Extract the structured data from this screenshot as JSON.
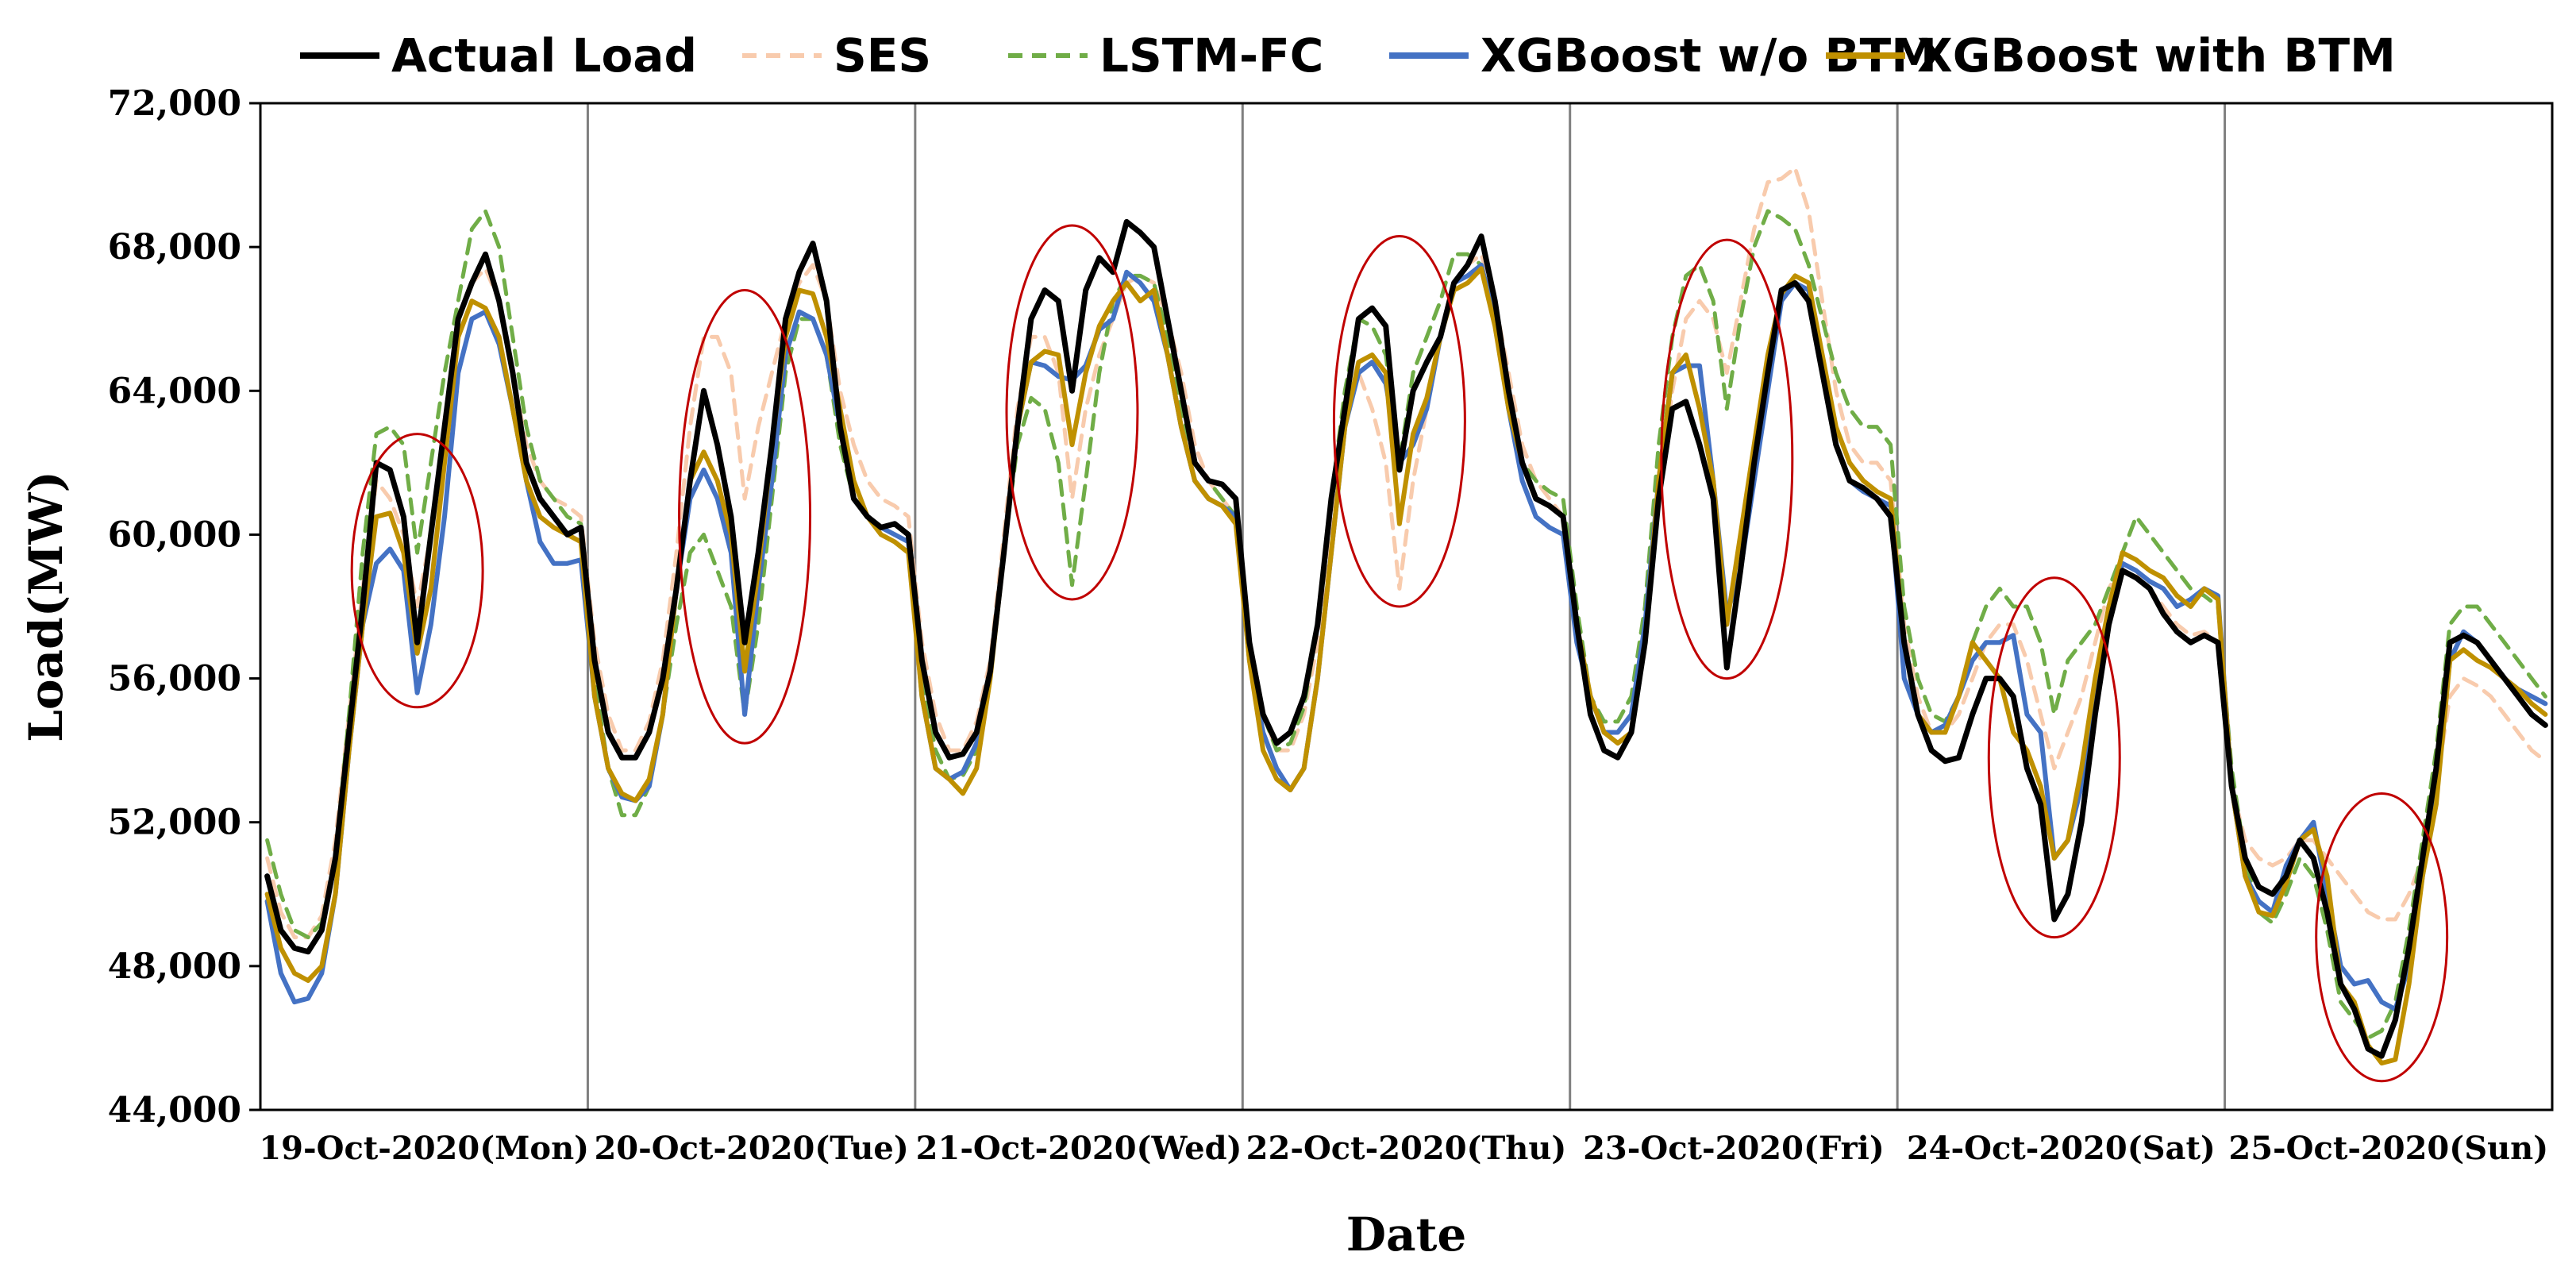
{
  "chart_data": {
    "type": "line",
    "title": "",
    "xlabel": "Date",
    "ylabel": "Load(MW)",
    "ylim": [
      44000,
      72000
    ],
    "yticks": [
      44000,
      48000,
      52000,
      56000,
      60000,
      64000,
      68000,
      72000
    ],
    "ytick_labels": [
      "44,000",
      "48,000",
      "52,000",
      "56,000",
      "60,000",
      "64,000",
      "68,000",
      "72,000"
    ],
    "day_labels": [
      "19-Oct-2020(Mon)",
      "20-Oct-2020(Tue)",
      "21-Oct-2020(Wed)",
      "22-Oct-2020(Thu)",
      "23-Oct-2020(Fri)",
      "24-Oct-2020(Sat)",
      "25-Oct-2020(Sun)"
    ],
    "hours_per_day": 24,
    "legend_position": "top",
    "series": [
      {
        "name": "Actual Load",
        "color": "#000000",
        "style": "solid",
        "values": [
          50500,
          49000,
          48500,
          48400,
          49000,
          51000,
          54500,
          58000,
          62000,
          61800,
          60500,
          57000,
          60000,
          63000,
          66000,
          67000,
          67800,
          66500,
          64500,
          62000,
          61000,
          60500,
          60000,
          60200,
          56500,
          54500,
          53800,
          53800,
          54500,
          56000,
          58500,
          61500,
          64000,
          62500,
          60500,
          57000,
          59500,
          62500,
          66000,
          67300,
          68100,
          66500,
          63000,
          61000,
          60500,
          60200,
          60300,
          60000,
          56500,
          54500,
          53800,
          53900,
          54500,
          56200,
          59500,
          63000,
          66000,
          66800,
          66500,
          64000,
          66800,
          67700,
          67300,
          68700,
          68400,
          68000,
          66000,
          64000,
          62000,
          61500,
          61400,
          61000,
          57000,
          55000,
          54200,
          54500,
          55500,
          57500,
          61000,
          63500,
          66000,
          66300,
          65800,
          61800,
          64000,
          64800,
          65500,
          67000,
          67500,
          68300,
          66500,
          64000,
          62000,
          61000,
          60800,
          60500,
          57500,
          55000,
          54000,
          53800,
          54500,
          57000,
          61000,
          63500,
          63700,
          62500,
          61000,
          56300,
          59000,
          62000,
          64500,
          66800,
          67000,
          66500,
          64500,
          62500,
          61500,
          61300,
          61000,
          60500,
          57000,
          55000,
          54000,
          53700,
          53800,
          55000,
          56000,
          56000,
          55500,
          53500,
          52500,
          49300,
          50000,
          52000,
          55000,
          57500,
          59000,
          58800,
          58500,
          57800,
          57300,
          57000,
          57200,
          57000,
          53000,
          51000,
          50200,
          50000,
          50500,
          51500,
          51000,
          49500,
          47500,
          46800,
          45700,
          45500,
          46500,
          48500,
          51000,
          53500,
          57000,
          57200,
          57000,
          56500,
          56000,
          55500,
          55000,
          54700
        ]
      },
      {
        "name": "SES",
        "color": "#f8cbad",
        "style": "dash",
        "values": [
          51000,
          49500,
          48800,
          48800,
          49400,
          51500,
          55000,
          58500,
          61500,
          61000,
          60000,
          58000,
          60000,
          63000,
          66000,
          67000,
          67400,
          66500,
          64500,
          62500,
          61500,
          61000,
          60800,
          60500,
          57000,
          55000,
          54000,
          54000,
          54800,
          56500,
          59500,
          63000,
          65500,
          65500,
          64500,
          61000,
          63000,
          64500,
          66000,
          67000,
          67500,
          66500,
          64000,
          62500,
          61500,
          61000,
          60800,
          60500,
          57000,
          55000,
          54000,
          54000,
          54800,
          56500,
          60000,
          63500,
          65500,
          65500,
          64500,
          61000,
          63500,
          65000,
          66000,
          67000,
          67200,
          67000,
          66000,
          64500,
          62500,
          61500,
          61000,
          60500,
          57000,
          55000,
          54000,
          54000,
          55000,
          57000,
          60500,
          63500,
          64500,
          63500,
          62000,
          58500,
          61500,
          63500,
          65500,
          67000,
          67500,
          67800,
          66500,
          64500,
          62500,
          61500,
          61000,
          60500,
          57500,
          55500,
          54500,
          54500,
          55000,
          57000,
          61000,
          64000,
          66000,
          66500,
          66000,
          64500,
          66500,
          68500,
          69800,
          69900,
          70200,
          69000,
          66500,
          64000,
          62500,
          62000,
          62000,
          61500,
          57500,
          55500,
          54500,
          54500,
          55000,
          56000,
          57000,
          57500,
          57500,
          56500,
          55000,
          53500,
          54500,
          55500,
          57000,
          58500,
          59200,
          59000,
          58500,
          58000,
          57500,
          57200,
          57300,
          57000,
          53000,
          51500,
          51000,
          50800,
          51000,
          51500,
          51500,
          51000,
          50500,
          50000,
          49500,
          49300,
          49300,
          50000,
          51000,
          53000,
          55500,
          56000,
          55800,
          55500,
          55000,
          54500,
          54000,
          53700
        ]
      },
      {
        "name": "LSTM-FC",
        "color": "#70ad47",
        "style": "dash",
        "values": [
          51500,
          50000,
          49000,
          48800,
          49200,
          51000,
          55000,
          59500,
          62800,
          63000,
          62500,
          59500,
          62000,
          64500,
          66500,
          68500,
          69000,
          68000,
          65500,
          63000,
          61500,
          61000,
          60500,
          60300,
          56000,
          53500,
          52200,
          52200,
          53000,
          55000,
          57500,
          59500,
          60000,
          59000,
          58000,
          55000,
          57500,
          61000,
          64500,
          66000,
          66000,
          65000,
          62500,
          61000,
          60500,
          60200,
          60000,
          59800,
          56000,
          54000,
          53200,
          53300,
          54000,
          56000,
          59500,
          62500,
          63800,
          63500,
          62000,
          58600,
          61500,
          64500,
          66500,
          67200,
          67200,
          67000,
          65500,
          63500,
          62000,
          61500,
          61000,
          60500,
          57000,
          55000,
          54000,
          54200,
          55200,
          57500,
          61000,
          64000,
          66000,
          65800,
          65000,
          62000,
          64500,
          65500,
          66500,
          67800,
          67800,
          67500,
          66000,
          64000,
          62000,
          61500,
          61200,
          61000,
          58000,
          55500,
          54800,
          54800,
          55500,
          58000,
          62500,
          65500,
          67200,
          67500,
          66500,
          63500,
          66000,
          68000,
          69000,
          68800,
          68500,
          67500,
          66000,
          64500,
          63500,
          63000,
          63000,
          62500,
          58000,
          56000,
          55000,
          54800,
          55500,
          57000,
          58000,
          58500,
          58000,
          58000,
          57000,
          55000,
          56500,
          57000,
          57500,
          58500,
          59500,
          60500,
          60000,
          59500,
          59000,
          58500,
          58300,
          58000,
          53500,
          51000,
          49500,
          49200,
          50000,
          51000,
          50500,
          49000,
          47000,
          46500,
          46000,
          46200,
          47000,
          49000,
          51500,
          54000,
          57500,
          58000,
          58000,
          57500,
          57000,
          56500,
          56000,
          55500
        ]
      },
      {
        "name": "XGBoost w/o BTM",
        "color": "#4472c4",
        "style": "solid",
        "values": [
          49800,
          47800,
          47000,
          47100,
          47800,
          50000,
          54000,
          57500,
          59200,
          59600,
          59000,
          55600,
          57500,
          60500,
          64500,
          66000,
          66200,
          65300,
          63500,
          61500,
          59800,
          59200,
          59200,
          59300,
          55500,
          53500,
          52700,
          52600,
          53000,
          55000,
          58500,
          61000,
          61800,
          61000,
          59500,
          55000,
          58500,
          61500,
          65000,
          66200,
          66000,
          65000,
          63000,
          61000,
          60500,
          60200,
          60000,
          59800,
          55500,
          53500,
          53200,
          53400,
          54200,
          56200,
          59500,
          63000,
          64800,
          64700,
          64400,
          64300,
          64700,
          65700,
          66000,
          67300,
          67000,
          66500,
          65000,
          63000,
          61500,
          61000,
          60800,
          60500,
          56500,
          54500,
          53500,
          52900,
          53500,
          56000,
          59500,
          63000,
          64500,
          64800,
          64200,
          62000,
          62500,
          63500,
          65500,
          67000,
          67200,
          67500,
          66000,
          63500,
          61500,
          60500,
          60200,
          60000,
          57000,
          55500,
          54500,
          54500,
          55000,
          57500,
          61500,
          64500,
          64700,
          64700,
          61500,
          57800,
          59000,
          61500,
          64000,
          66500,
          67000,
          66800,
          64500,
          62500,
          61500,
          61200,
          61000,
          60800,
          56000,
          55000,
          54500,
          54700,
          55500,
          56500,
          57000,
          57000,
          57200,
          55000,
          54500,
          51000,
          51500,
          53000,
          55500,
          58000,
          59200,
          59000,
          58700,
          58500,
          58000,
          58200,
          58500,
          58300,
          53000,
          50500,
          49800,
          49500,
          50800,
          51500,
          52000,
          50000,
          48000,
          47500,
          47600,
          47000,
          46800,
          48000,
          50500,
          53000,
          56500,
          57300,
          57000,
          56500,
          56000,
          55700,
          55500,
          55300
        ]
      },
      {
        "name": "XGBoost with BTM",
        "color": "#bf9000",
        "style": "solid",
        "values": [
          50000,
          48500,
          47800,
          47600,
          48000,
          50000,
          54000,
          57500,
          60500,
          60600,
          59500,
          56700,
          58500,
          62000,
          65500,
          66500,
          66300,
          65500,
          63500,
          61500,
          60500,
          60200,
          60000,
          59800,
          55500,
          53500,
          52800,
          52600,
          53200,
          55000,
          58500,
          61500,
          62300,
          61500,
          60000,
          56200,
          59000,
          62500,
          65500,
          66800,
          66700,
          65500,
          63500,
          61500,
          60500,
          60000,
          59800,
          59500,
          55500,
          53500,
          53200,
          52800,
          53500,
          56000,
          59500,
          63000,
          64800,
          65100,
          65000,
          62500,
          64500,
          65800,
          66500,
          67000,
          66500,
          66800,
          65000,
          63000,
          61500,
          61000,
          60800,
          60300,
          56500,
          54000,
          53200,
          52900,
          53500,
          56000,
          59500,
          63000,
          64800,
          65000,
          64500,
          60300,
          62800,
          63800,
          65500,
          66800,
          67000,
          67400,
          65800,
          63500,
          62000,
          61000,
          60800,
          60500,
          57500,
          55500,
          54500,
          54200,
          54500,
          57000,
          61500,
          64500,
          65000,
          63500,
          61500,
          57500,
          60000,
          62500,
          65000,
          66700,
          67200,
          67000,
          65000,
          63000,
          62000,
          61500,
          61200,
          61000,
          57000,
          55000,
          54500,
          54500,
          55500,
          57000,
          56500,
          56000,
          54500,
          54000,
          53000,
          51000,
          51500,
          53500,
          56000,
          58000,
          59500,
          59300,
          59000,
          58800,
          58300,
          58000,
          58500,
          58200,
          53000,
          50500,
          49500,
          49400,
          50300,
          51500,
          51800,
          50500,
          47500,
          47000,
          45800,
          45300,
          45400,
          47500,
          50500,
          52500,
          56500,
          56800,
          56500,
          56300,
          56000,
          55700,
          55300,
          55000
        ]
      }
    ],
    "highlight_ellipses": [
      {
        "day": "19-Oct-2020(Mon)",
        "center_hour": 11,
        "range": [
          55200,
          62800
        ]
      },
      {
        "day": "20-Oct-2020(Tue)",
        "center_hour": 11,
        "range": [
          54200,
          66800
        ]
      },
      {
        "day": "21-Oct-2020(Wed)",
        "center_hour": 11,
        "range": [
          58200,
          68600
        ]
      },
      {
        "day": "22-Oct-2020(Thu)",
        "center_hour": 11,
        "range": [
          58000,
          68300
        ]
      },
      {
        "day": "23-Oct-2020(Fri)",
        "center_hour": 11,
        "range": [
          56000,
          68200
        ]
      },
      {
        "day": "24-Oct-2020(Sat)",
        "center_hour": 11,
        "range": [
          48800,
          58800
        ]
      },
      {
        "day": "25-Oct-2020(Sun)",
        "center_hour": 11,
        "range": [
          44800,
          52800
        ]
      }
    ],
    "highlight_color": "#c00000"
  }
}
